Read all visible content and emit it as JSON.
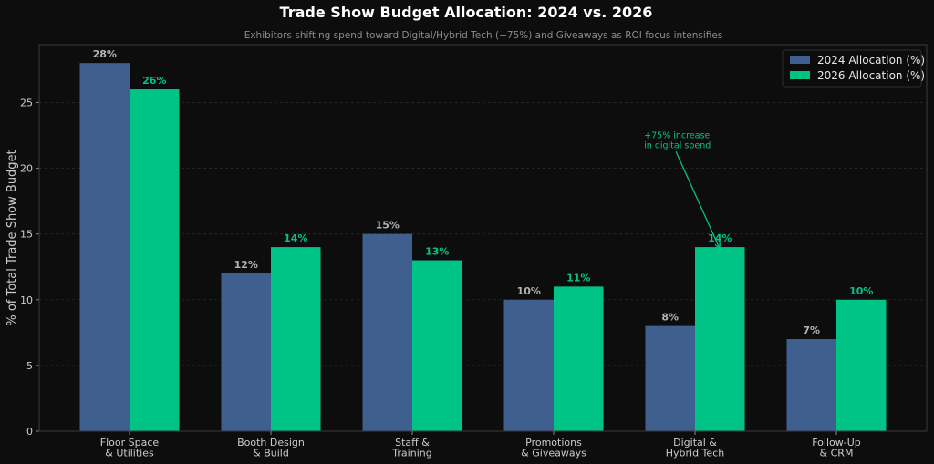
{
  "chart_data": {
    "type": "bar",
    "title": "Trade Show Budget Allocation: 2024 vs. 2026",
    "subtitle": "Exhibitors shifting spend toward Digital/Hybrid Tech (+75%) and Giveaways as ROI focus intensifies",
    "xlabel": "",
    "ylabel": "% of Total Trade Show Budget",
    "ylim": [
      0,
      29.4
    ],
    "yticks": [
      0,
      5,
      10,
      15,
      20,
      25
    ],
    "grid": true,
    "legend_position": "top-right",
    "categories": [
      [
        "Floor Space",
        "& Utilities"
      ],
      [
        "Booth Design",
        "& Build"
      ],
      [
        "Staff &",
        "Training"
      ],
      [
        "Promotions",
        "& Giveaways"
      ],
      [
        "Digital &",
        "Hybrid Tech"
      ],
      [
        "Follow-Up",
        "& CRM"
      ]
    ],
    "series": [
      {
        "name": "2024 Allocation (%)",
        "color": "#3f5f8f",
        "label_color": "#b3b3b3",
        "values": [
          28,
          12,
          15,
          10,
          8,
          7
        ]
      },
      {
        "name": "2026 Allocation (%)",
        "color": "#00c386",
        "label_color": "#00c386",
        "values": [
          26,
          14,
          13,
          11,
          14,
          10
        ]
      }
    ],
    "value_suffix": "%",
    "annotation": {
      "lines": [
        "+75% increase",
        "in digital spend"
      ],
      "category_index": 4,
      "series_index": 1,
      "text_anchor_x": 4.33,
      "text_anchor_y": 22.3
    },
    "colors": {
      "background": "#0d0d0d",
      "axis": "#3a3a3a",
      "grid": "#2a2a2a",
      "accent": "#00c386"
    }
  }
}
